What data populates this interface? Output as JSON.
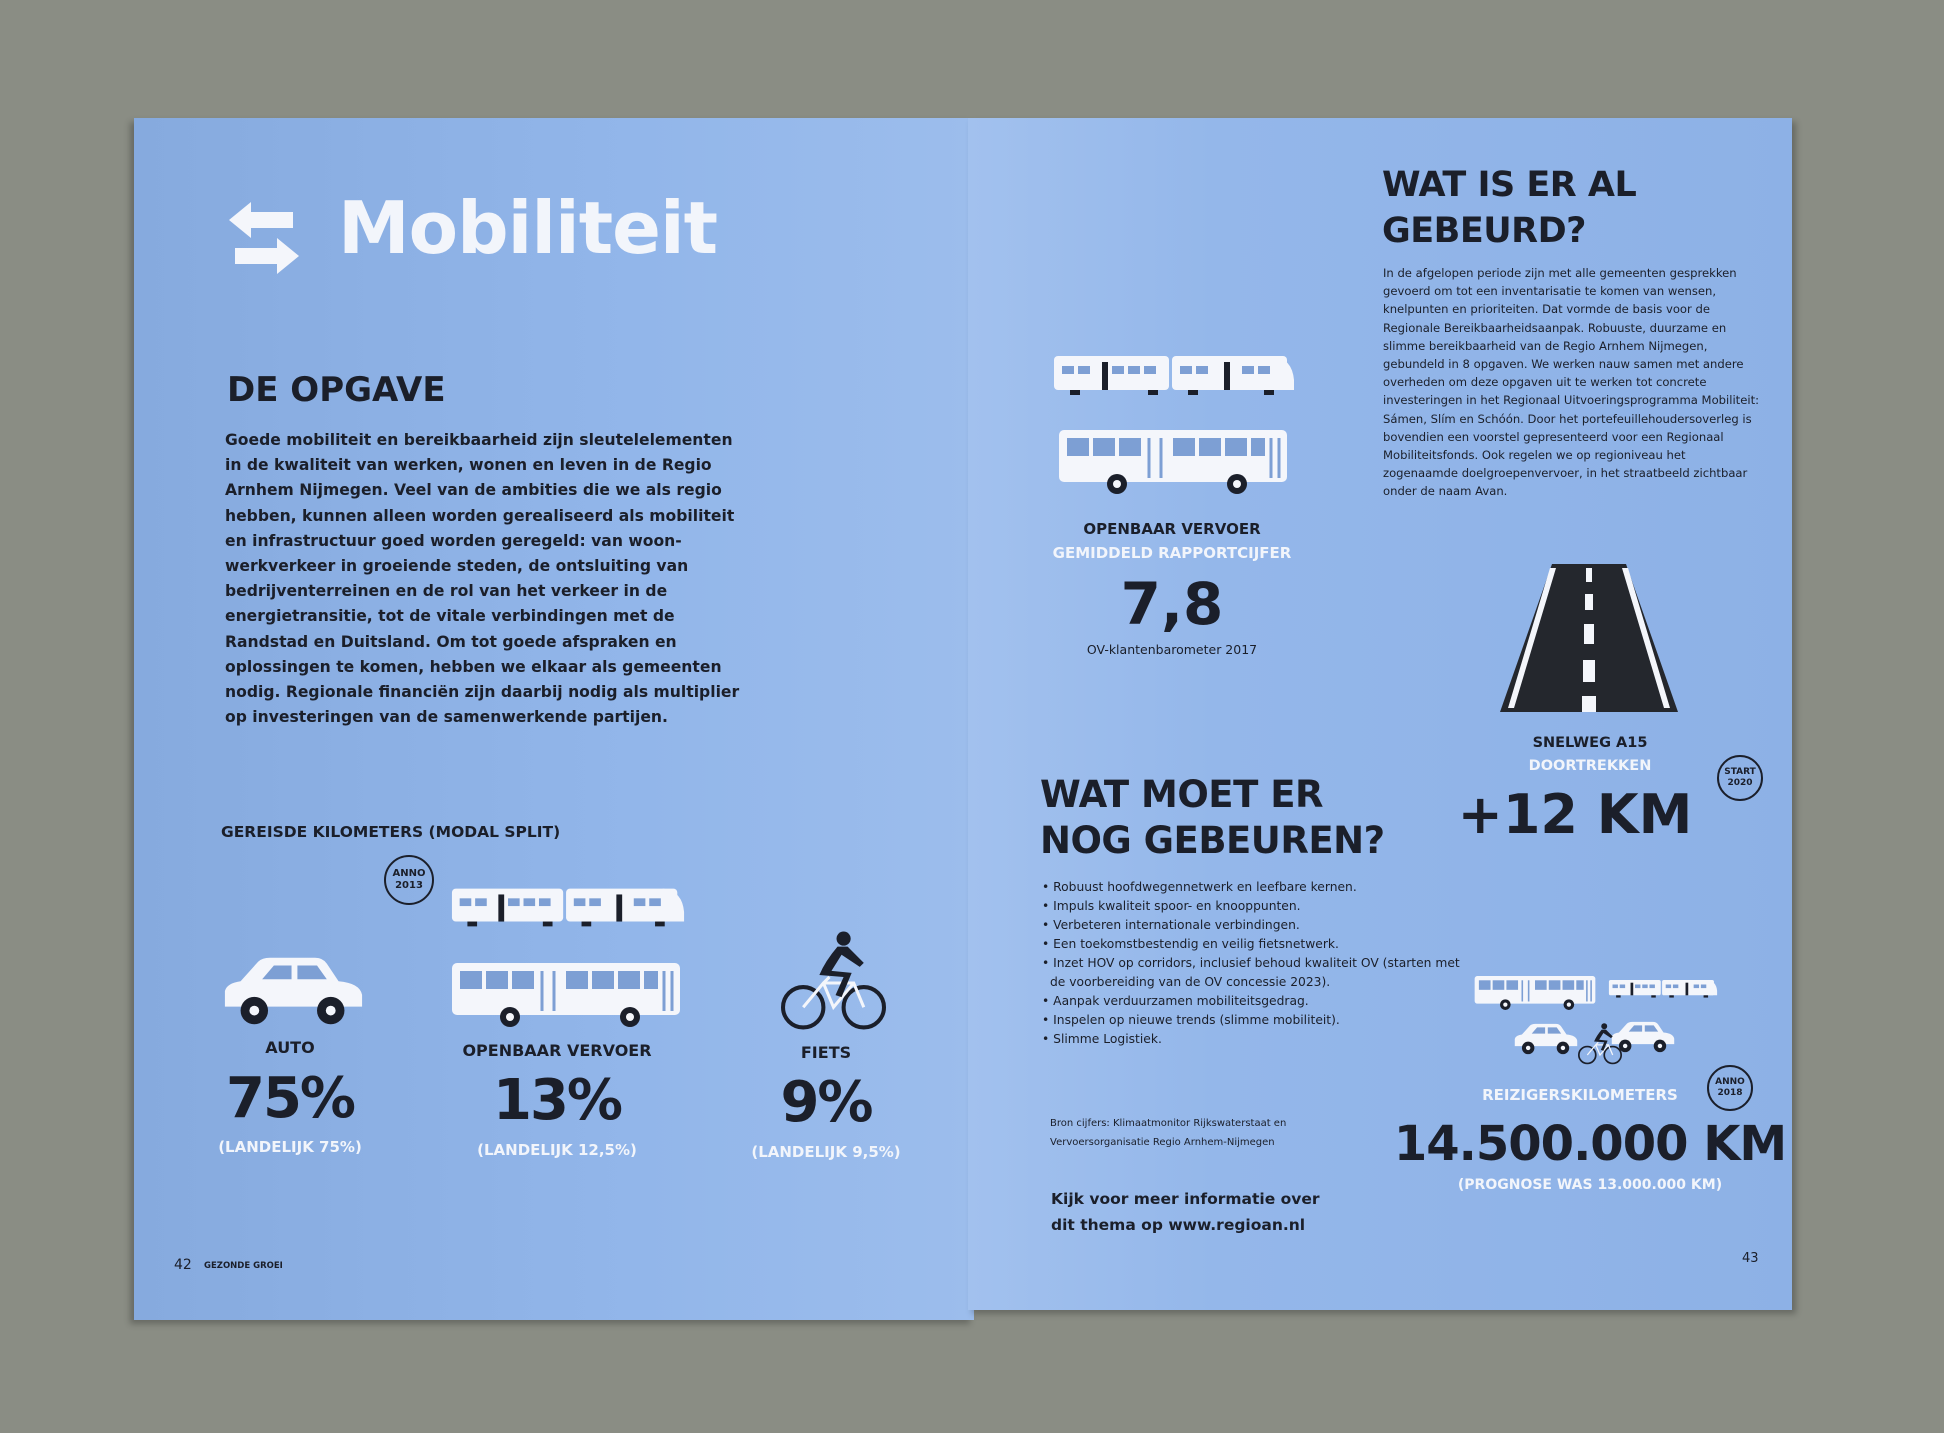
{
  "left_page": {
    "title": "Mobiliteit",
    "title_icon": "swap-arrows-icon",
    "section_heading": "DE OPGAVE",
    "intro": "Goede mobiliteit en bereikbaarheid zijn sleutelelementen in de kwaliteit van werken, wonen en leven in de Regio Arnhem Nijmegen. Veel van de ambities die we als regio hebben, kunnen alleen worden gerealiseerd als mobiliteit en infrastructuur goed worden geregeld: van woon-werkverkeer in groeiende steden, de ontsluiting van bedrijventerreinen en de rol van het verkeer in de energietransitie, tot de vitale verbindingen met de Randstad en Duitsland. Om tot goede afspraken en oplossingen te komen, hebben we elkaar als gemeenten nodig. Regionale financiën zijn daarbij nodig als multiplier op investeringen van de samenwerkende partijen.",
    "modal_split": {
      "heading": "GEREISDE KILOMETERS (MODAL SPLIT)",
      "badge": {
        "line1": "ANNO",
        "line2": "2013"
      },
      "items": [
        {
          "label": "AUTO",
          "value": "75%",
          "national": "(LANDELIJK 75%)",
          "icon": "car-icon"
        },
        {
          "label": "OPENBAAR VERVOER",
          "value": "13%",
          "national": "(LANDELIJK 12,5%)",
          "icon": "train-bus-icon"
        },
        {
          "label": "FIETS",
          "value": "9%",
          "national": "(LANDELIJK 9,5%)",
          "icon": "cyclist-icon"
        }
      ]
    },
    "footer": {
      "page_number": "42",
      "running_title": "GEZONDE GROEI"
    }
  },
  "right_page": {
    "ov": {
      "label1": "OPENBAAR VERVOER",
      "label2": "GEMIDDELD RAPPORTCIJFER",
      "value": "7,8",
      "source": "OV-klantenbarometer 2017"
    },
    "done": {
      "heading1": "WAT IS ER AL",
      "heading2": "GEBEURD?",
      "text": "In de afgelopen periode zijn met alle gemeenten gesprekken gevoerd om tot een inventarisatie te komen van wensen, knelpunten en prioriteiten. Dat vormde de basis voor de Regionale Bereikbaarheidsaanpak. Robuuste, duurzame en slimme bereikbaarheid van de Regio Arnhem Nijmegen, gebundeld in 8 opgaven. We werken nauw samen met andere overheden om deze opgaven uit te werken tot concrete investeringen in het Regionaal Uitvoeringsprogramma Mobiliteit: Sámen, Slím en Schóón. Door het portefeuillehoudersoverleg is bovendien een voorstel gepresenteerd voor een Regionaal Mobiliteitsfonds. Ook regelen we op regioniveau het zogenaamde doelgroepenvervoer, in het straatbeeld zichtbaar onder de naam Avan."
    },
    "road": {
      "label1": "SNELWEG A15",
      "label2": "DOORTREKKEN",
      "value": "+12 KM",
      "badge": {
        "line1": "START",
        "line2": "2020"
      }
    },
    "todo": {
      "heading1": "WAT MOET ER",
      "heading2": "NOG GEBEUREN?",
      "bullets": [
        "Robuust hoofdwegennetwerk en leefbare kernen.",
        "Impuls kwaliteit spoor- en knooppunten.",
        "Verbeteren internationale verbindingen.",
        "Een toekomstbestendig en veilig fietsnetwerk.",
        "Inzet HOV op corridors, inclusief behoud kwaliteit OV (starten met de voorbereiding van de OV concessie 2023).",
        "Aanpak verduurzamen mobiliteitsgedrag.",
        "Inspelen op nieuwe trends (slimme mobiliteit).",
        "Slimme Logistiek."
      ]
    },
    "source": {
      "line1": "Bron cijfers: Klimaatmonitor Rijkswaterstaat en",
      "line2": "Vervoersorganisatie Regio Arnhem-Nijmegen"
    },
    "more_info": {
      "line1": "Kijk voor meer informatie over",
      "line2": "dit thema op www.regioan.nl"
    },
    "traveller_km": {
      "label": "REIZIGERSKILOMETERS",
      "value": "14.500.000 KM",
      "forecast": "(PROGNOSE WAS 13.000.000 KM)",
      "badge": {
        "line1": "ANNO",
        "line2": "2018"
      }
    },
    "footer": {
      "page_number": "43"
    }
  },
  "colors": {
    "page": "#8fb3e6",
    "ink": "#1b1f2a",
    "white": "#f2f5fb",
    "background": "#8a8d84"
  }
}
